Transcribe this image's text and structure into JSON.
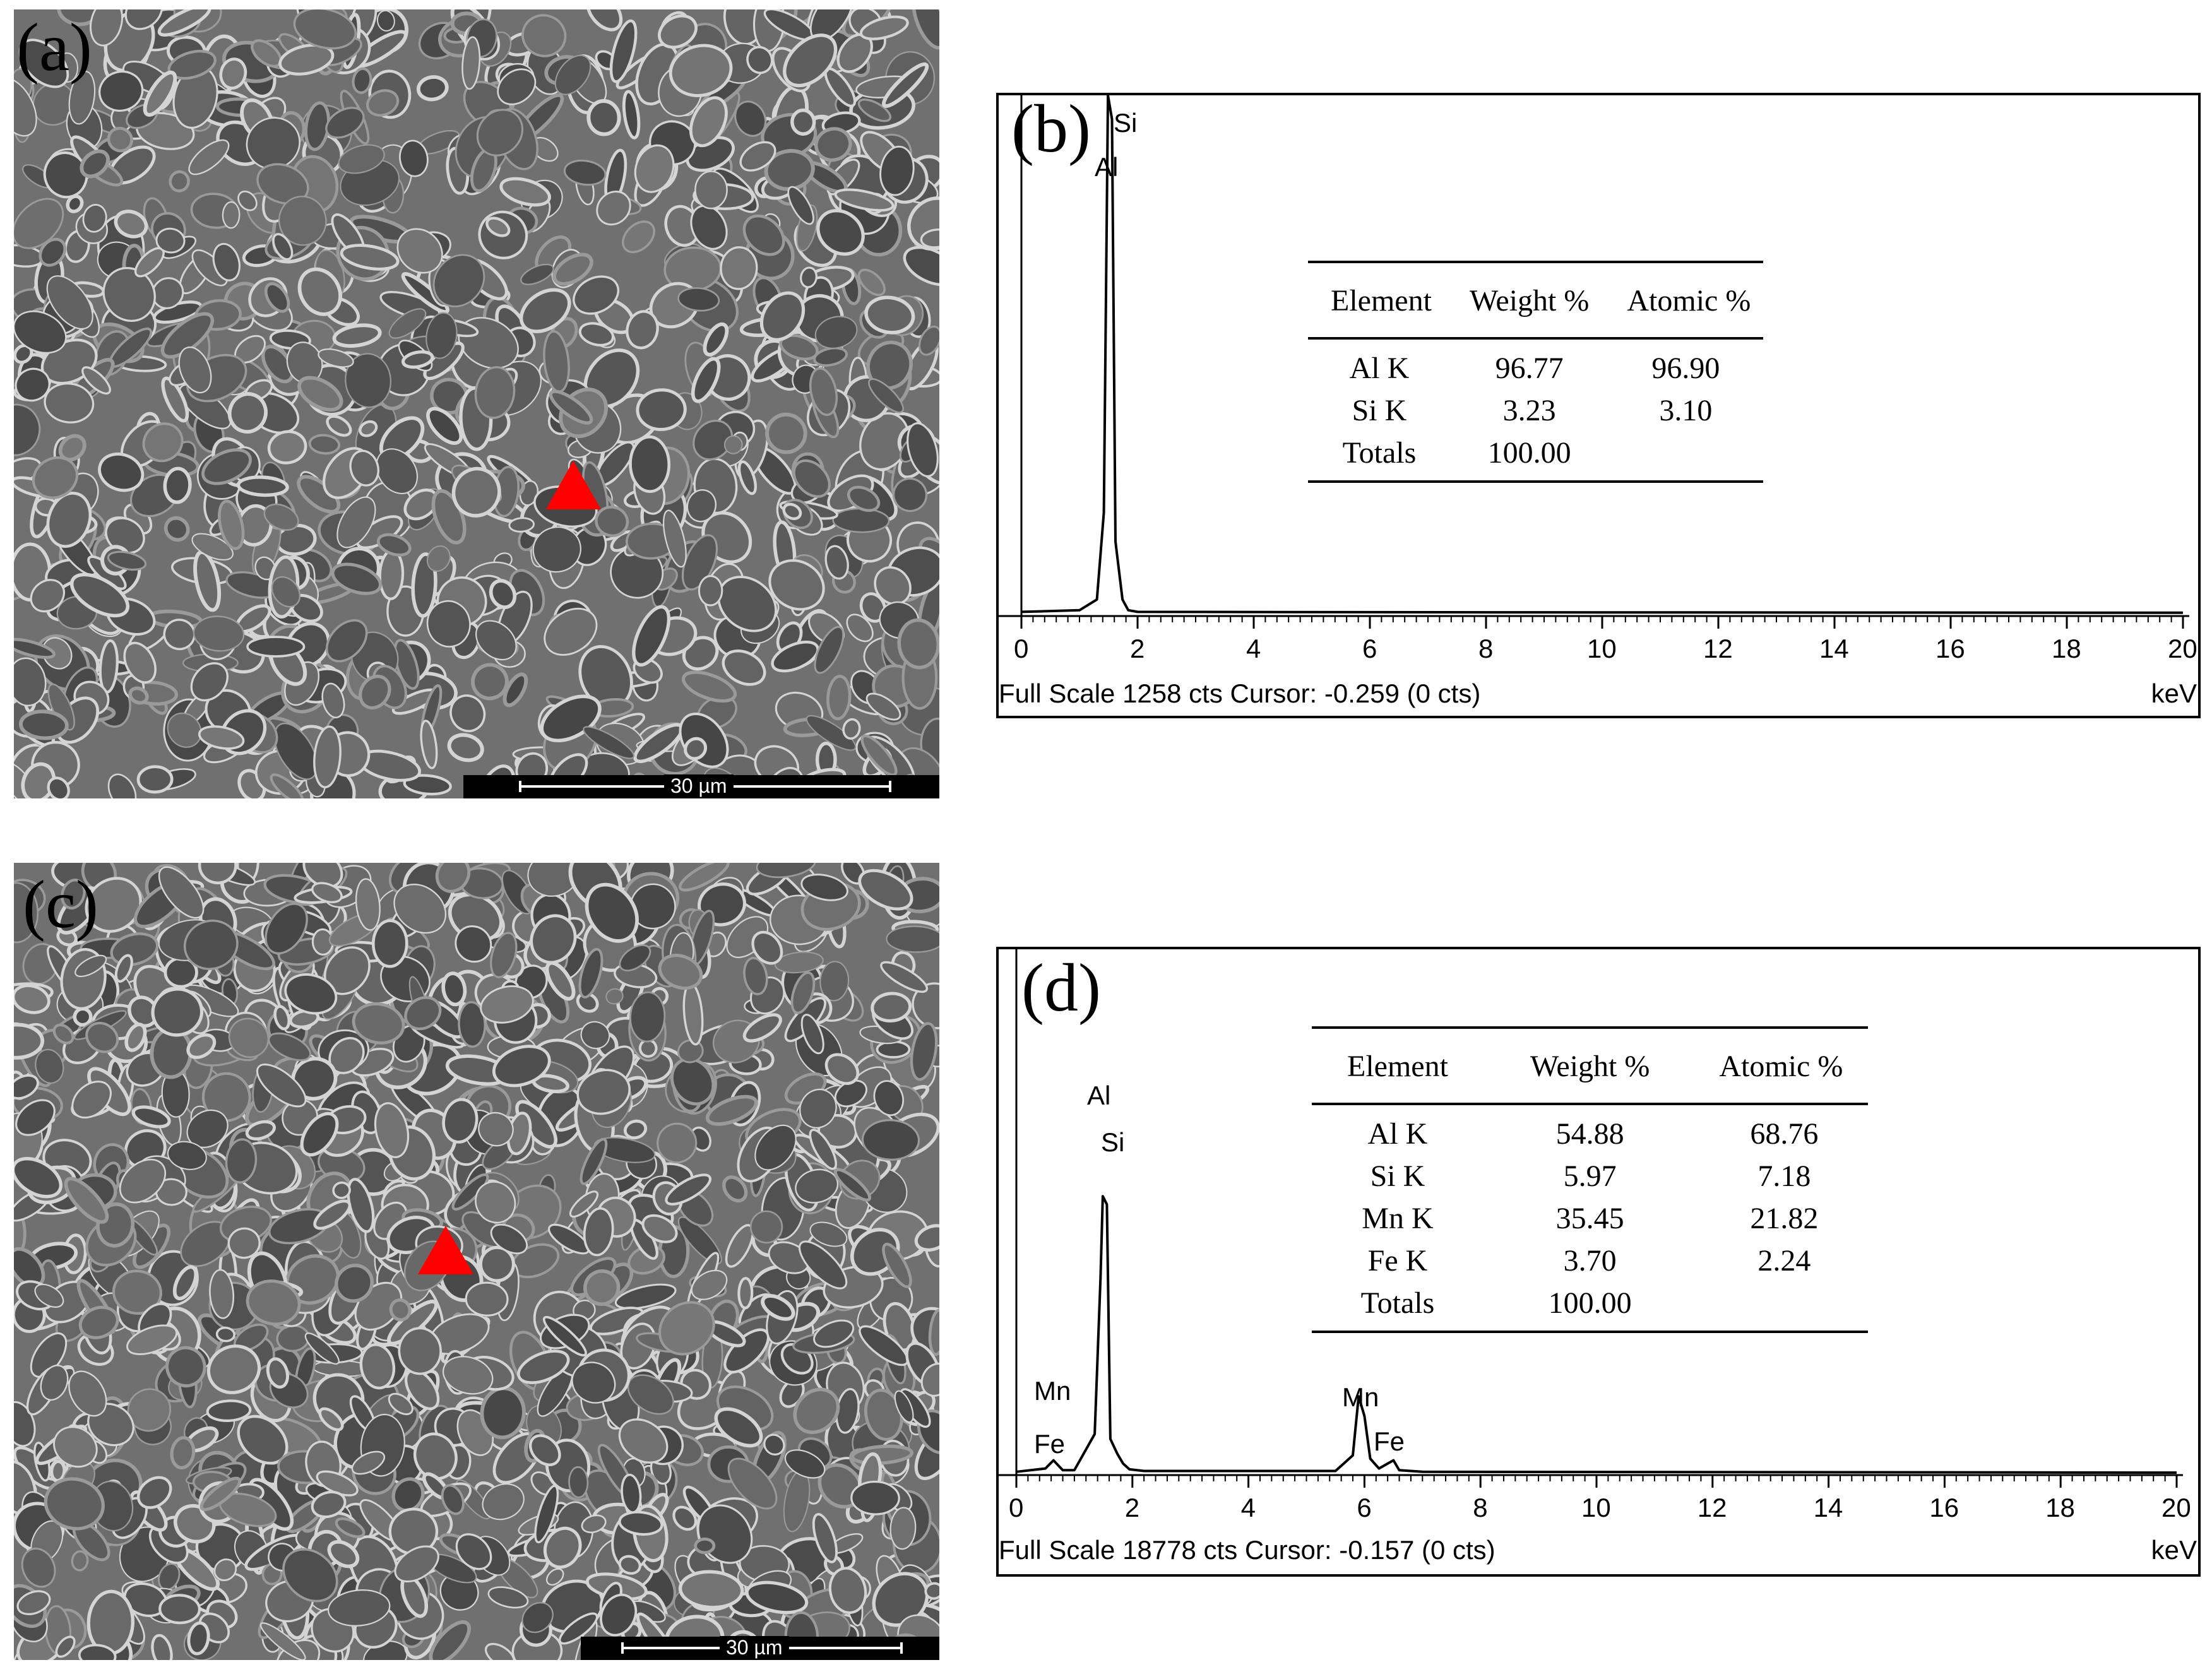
{
  "panels": {
    "a": {
      "letter": "(a)",
      "scalebar": "30 µm"
    },
    "b": {
      "letter": "(b)",
      "status": "Full Scale 1258 cts Cursor: -0.259  (0 cts)",
      "unit": "keV",
      "peak_labels": [
        "Si",
        "Al"
      ],
      "table": {
        "headers": [
          "Element",
          "Weight %",
          "Atomic %"
        ],
        "rows": [
          [
            "Al K",
            "96.77",
            "96.90"
          ],
          [
            "Si K",
            "3.23",
            "3.10"
          ],
          [
            "Totals",
            "100.00",
            ""
          ]
        ]
      }
    },
    "c": {
      "letter": "(c)",
      "scalebar": "30 µm"
    },
    "d": {
      "letter": "(d)",
      "status": "Full Scale 18778 cts Cursor: -0.157  (0 cts)",
      "unit": "keV",
      "peak_labels": [
        "Al",
        "Si",
        "Mn",
        "Fe",
        "Mn",
        "Fe"
      ],
      "table": {
        "headers": [
          "Element",
          "Weight %",
          "Atomic %"
        ],
        "rows": [
          [
            "Al K",
            "54.88",
            "68.76"
          ],
          [
            "Si K",
            "5.97",
            "7.18"
          ],
          [
            "Mn K",
            "35.45",
            "21.82"
          ],
          [
            "Fe K",
            "3.70",
            "2.24"
          ],
          [
            "Totals",
            "100.00",
            ""
          ]
        ]
      }
    }
  },
  "chart_data": [
    {
      "type": "line",
      "panel": "b",
      "xlabel": "keV",
      "xlim": [
        0,
        20
      ],
      "x_ticks": [
        "0",
        "2",
        "4",
        "6",
        "8",
        "10",
        "12",
        "14",
        "16",
        "18",
        "20"
      ],
      "full_scale_cts": 1258,
      "series": [
        {
          "x": [
            0,
            1.0,
            1.3,
            1.42,
            1.49,
            1.56,
            1.62,
            1.74,
            1.84,
            2.0,
            8.0,
            20.0
          ],
          "values": [
            10,
            14,
            40,
            250,
            1258,
            1200,
            180,
            40,
            14,
            10,
            9,
            8
          ]
        }
      ]
    },
    {
      "type": "line",
      "panel": "d",
      "xlabel": "keV",
      "xlim": [
        0,
        20
      ],
      "x_ticks": [
        "0",
        "2",
        "4",
        "6",
        "8",
        "10",
        "12",
        "14",
        "16",
        "18",
        "20"
      ],
      "full_scale_cts": 18778,
      "series": [
        {
          "x": [
            0,
            0.5,
            0.64,
            0.8,
            1.0,
            1.35,
            1.45,
            1.49,
            1.56,
            1.62,
            1.74,
            1.84,
            1.95,
            2.2,
            5.5,
            5.8,
            5.9,
            6.0,
            6.1,
            6.25,
            6.4,
            6.5,
            6.6,
            7.0,
            20.0
          ],
          "values": [
            200,
            400,
            900,
            300,
            300,
            2500,
            12000,
            17000,
            16500,
            2200,
            1300,
            700,
            350,
            250,
            250,
            1200,
            4800,
            3600,
            1000,
            400,
            700,
            900,
            300,
            200,
            150
          ]
        }
      ]
    }
  ]
}
